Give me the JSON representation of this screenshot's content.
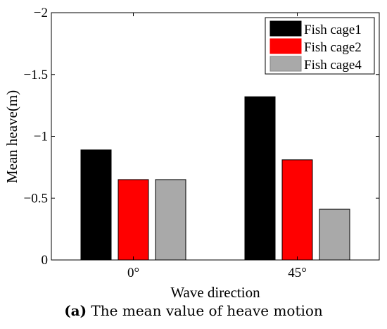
{
  "chart_data": {
    "type": "bar",
    "categories": [
      "0°",
      "45°"
    ],
    "series": [
      {
        "name": "Fish cage1",
        "color": "#000000",
        "values": [
          -0.89,
          -1.32
        ]
      },
      {
        "name": "Fish cage2",
        "color": "#ff0000",
        "values": [
          -0.65,
          -0.81
        ]
      },
      {
        "name": "Fish cage4",
        "color": "#a9a9a9",
        "values": [
          -0.65,
          -0.41
        ]
      }
    ],
    "xlabel": "Wave direction",
    "ylabel": "Mean heave(m)",
    "ylim": [
      0,
      -2
    ],
    "y_axis_reversed": true,
    "yticks": [
      0,
      -0.5,
      -1,
      -1.5,
      -2
    ],
    "ytick_labels": [
      "0",
      "−0.5",
      "−1",
      "−1.5",
      "−2"
    ],
    "legend_position": "top-right",
    "grid": false
  },
  "caption": {
    "label": "(a)",
    "text": " The mean value of heave motion"
  }
}
